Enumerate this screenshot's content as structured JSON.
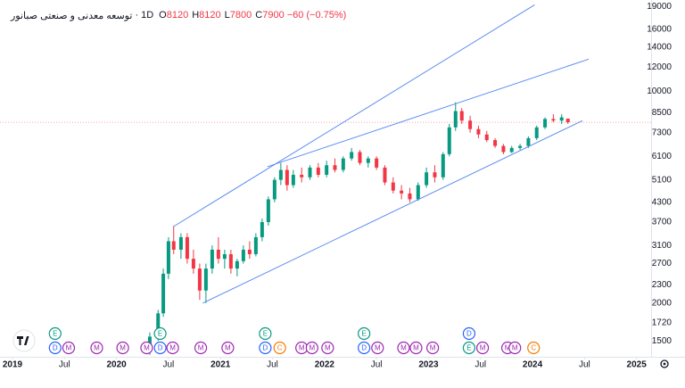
{
  "header": {
    "symbol": "توسعه معدنی و صنعتی صبانور",
    "separator": "·",
    "interval": "1D",
    "ohlc": [
      {
        "label": "O",
        "value": 8120
      },
      {
        "label": "H",
        "value": 8120
      },
      {
        "label": "L",
        "value": 7800
      },
      {
        "label": "C",
        "value": 7900
      }
    ],
    "change": {
      "value": -60,
      "label": "−60"
    },
    "change_percent": {
      "value": -0.75,
      "label": "(−0.75%)"
    }
  },
  "chart_data": {
    "type": "candlestick",
    "log_scale": true,
    "xlim": [
      2018.88,
      2025.14
    ],
    "ylim": [
      1330,
      20000
    ],
    "xticks": [
      {
        "value": 2019,
        "label": "2019"
      },
      {
        "value": 2019.5,
        "label": "Jul"
      },
      {
        "value": 2020,
        "label": "2020"
      },
      {
        "value": 2020.5,
        "label": "Jul"
      },
      {
        "value": 2021,
        "label": "2021"
      },
      {
        "value": 2021.5,
        "label": "Jul"
      },
      {
        "value": 2022,
        "label": "2022"
      },
      {
        "value": 2022.5,
        "label": "Jul"
      },
      {
        "value": 2023,
        "label": "2023"
      },
      {
        "value": 2023.5,
        "label": "Jul"
      },
      {
        "value": 2024,
        "label": "2024"
      },
      {
        "value": 2024.5,
        "label": "Jul"
      },
      {
        "value": 2025,
        "label": "2025"
      }
    ],
    "yticks": [
      1500,
      1720,
      2000,
      2300,
      2700,
      3100,
      3700,
      4300,
      5100,
      6100,
      7300,
      8500,
      10000,
      12000,
      14000,
      16000,
      19000
    ],
    "up_color": "#089981",
    "down_color": "#f23645",
    "candles": {
      "x": [
        2020.32,
        2020.4,
        2020.45,
        2020.5,
        2020.55,
        2020.62,
        2020.68,
        2020.74,
        2020.8,
        2020.86,
        2020.92,
        2020.98,
        2021.04,
        2021.1,
        2021.16,
        2021.22,
        2021.28,
        2021.34,
        2021.4,
        2021.46,
        2021.52,
        2021.58,
        2021.64,
        2021.7,
        2021.78,
        2021.86,
        2021.94,
        2022.02,
        2022.1,
        2022.18,
        2022.26,
        2022.34,
        2022.42,
        2022.5,
        2022.58,
        2022.66,
        2022.74,
        2022.82,
        2022.9,
        2022.98,
        2023.06,
        2023.14,
        2023.2,
        2023.26,
        2023.32,
        2023.4,
        2023.48,
        2023.56,
        2023.64,
        2023.72,
        2023.8,
        2023.88,
        2023.96,
        2024.04,
        2024.12,
        2024.2,
        2024.28,
        2024.34
      ],
      "open": [
        1400,
        1550,
        1850,
        2500,
        3200,
        3000,
        3300,
        2800,
        2600,
        2200,
        2600,
        3000,
        2800,
        2900,
        2600,
        2750,
        3000,
        2900,
        3300,
        3700,
        4400,
        5100,
        5500,
        4900,
        5300,
        5200,
        5600,
        5300,
        5700,
        5500,
        6000,
        6300,
        5800,
        6000,
        5600,
        5000,
        4700,
        4600,
        4400,
        4900,
        5400,
        5200,
        6200,
        7600,
        8600,
        8000,
        7500,
        7200,
        6900,
        6600,
        6300,
        6500,
        6600,
        7000,
        7600,
        8100,
        8000,
        8120
      ],
      "high": [
        1600,
        1900,
        2600,
        3300,
        3600,
        3400,
        3400,
        3000,
        2700,
        2700,
        3100,
        3300,
        3000,
        3000,
        2800,
        3100,
        3200,
        3400,
        3800,
        4500,
        5200,
        5800,
        5700,
        5500,
        5600,
        5700,
        5800,
        5900,
        6000,
        6100,
        6500,
        6400,
        6100,
        6100,
        5700,
        5200,
        4900,
        4800,
        5000,
        5600,
        5700,
        6300,
        7800,
        9200,
        8800,
        8300,
        7700,
        7400,
        7000,
        6700,
        6600,
        6700,
        7100,
        7700,
        8200,
        8400,
        8400,
        8120
      ],
      "low": [
        1350,
        1500,
        1800,
        2400,
        2900,
        2800,
        2700,
        2500,
        2050,
        2000,
        2500,
        2700,
        2600,
        2500,
        2450,
        2700,
        2800,
        2850,
        3200,
        3600,
        4300,
        4900,
        4700,
        4800,
        5000,
        5100,
        5200,
        5200,
        5400,
        5400,
        5900,
        5700,
        5600,
        5500,
        4900,
        4600,
        4400,
        4300,
        4350,
        4800,
        5000,
        5100,
        6100,
        7400,
        7800,
        7300,
        7000,
        6800,
        6500,
        6200,
        6250,
        6400,
        6500,
        6900,
        7500,
        7900,
        7800,
        7800
      ],
      "close": [
        1550,
        1850,
        2500,
        3200,
        3000,
        3300,
        2800,
        2600,
        2200,
        2600,
        3000,
        2800,
        2900,
        2600,
        2750,
        3000,
        2900,
        3300,
        3700,
        4400,
        5100,
        5500,
        4900,
        5300,
        5200,
        5600,
        5300,
        5700,
        5500,
        6000,
        6300,
        5800,
        6000,
        5600,
        5000,
        4700,
        4600,
        4400,
        4900,
        5400,
        5200,
        6200,
        7600,
        8600,
        8000,
        7500,
        7200,
        6900,
        6600,
        6300,
        6500,
        6600,
        7000,
        7600,
        8100,
        8000,
        8200,
        7900
      ]
    },
    "trendline_color": "#5b8def",
    "trendlines": [
      {
        "x": [
          2020.55,
          2024.02
        ],
        "y": [
          3580,
          19270
        ]
      },
      {
        "x": [
          2021.45,
          2024.54
        ],
        "y": [
          5634,
          12760
        ]
      },
      {
        "x": [
          2020.83,
          2024.48
        ],
        "y": [
          2000,
          7997
        ]
      }
    ],
    "price_line": {
      "value": 7900,
      "color": "#f7a5ab"
    },
    "event_colors": {
      "D": "#2962ff",
      "E": "#089981",
      "M": "#9c27b0",
      "C": "#f57c00"
    },
    "events": [
      {
        "label": "D",
        "x": 2019.41
      },
      {
        "label": "E",
        "x": 2019.41
      },
      {
        "label": "M",
        "x": 2019.54
      },
      {
        "label": "M",
        "x": 2019.81
      },
      {
        "label": "M",
        "x": 2020.06
      },
      {
        "label": "M",
        "x": 2020.29
      },
      {
        "label": "D",
        "x": 2020.42
      },
      {
        "label": "E",
        "x": 2020.42
      },
      {
        "label": "M",
        "x": 2020.54
      },
      {
        "label": "M",
        "x": 2020.81
      },
      {
        "label": "M",
        "x": 2021.07
      },
      {
        "label": "D",
        "x": 2021.43
      },
      {
        "label": "E",
        "x": 2021.43
      },
      {
        "label": "C",
        "x": 2021.57
      },
      {
        "label": "M",
        "x": 2021.78
      },
      {
        "label": "M",
        "x": 2021.88
      },
      {
        "label": "M",
        "x": 2022.03
      },
      {
        "label": "D",
        "x": 2022.38
      },
      {
        "label": "E",
        "x": 2022.38
      },
      {
        "label": "M",
        "x": 2022.51
      },
      {
        "label": "M",
        "x": 2022.76
      },
      {
        "label": "M",
        "x": 2022.88
      },
      {
        "label": "M",
        "x": 2023.04
      },
      {
        "label": "E",
        "x": 2023.39
      },
      {
        "label": "D",
        "x": 2023.39
      },
      {
        "label": "M",
        "x": 2023.52
      },
      {
        "label": "M",
        "x": 2023.76
      },
      {
        "label": "M",
        "x": 2023.83
      },
      {
        "label": "C",
        "x": 2024.01
      }
    ]
  }
}
